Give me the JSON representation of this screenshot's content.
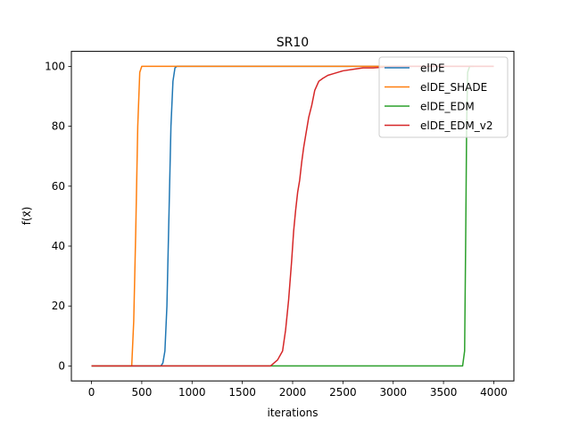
{
  "chart_data": {
    "type": "line",
    "title": "SR10",
    "xlabel": "iterations",
    "ylabel": "f(x⃗)",
    "xlim": [
      -200,
      4200
    ],
    "ylim": [
      -5,
      105
    ],
    "xticks": [
      0,
      500,
      1000,
      1500,
      2000,
      2500,
      3000,
      3500,
      4000
    ],
    "yticks": [
      0,
      20,
      40,
      60,
      80,
      100
    ],
    "grid": false,
    "legend_position": "top-right",
    "series": [
      {
        "name": "elDE",
        "color": "#1f77b4",
        "x": [
          0,
          690,
          710,
          730,
          750,
          770,
          790,
          810,
          830,
          850,
          1000,
          2000,
          3000
        ],
        "y": [
          0,
          0,
          1,
          5,
          20,
          50,
          80,
          95,
          99.5,
          100,
          100,
          100,
          100
        ]
      },
      {
        "name": "elDE_SHADE",
        "color": "#ff7f0e",
        "x": [
          0,
          400,
          420,
          440,
          460,
          480,
          500,
          520,
          1000,
          2000,
          3000,
          4000
        ],
        "y": [
          0,
          0,
          15,
          45,
          80,
          98,
          100,
          100,
          100,
          100,
          100,
          100
        ]
      },
      {
        "name": "elDE_EDM",
        "color": "#2ca02c",
        "x": [
          0,
          1000,
          2000,
          3000,
          3690,
          3710,
          3720,
          3730,
          3740,
          3760,
          3800
        ],
        "y": [
          0,
          0,
          0,
          0,
          0,
          5,
          40,
          80,
          98,
          100,
          100
        ]
      },
      {
        "name": "elDE_EDM_v2",
        "color": "#d62728",
        "x": [
          0,
          1000,
          1500,
          1700,
          1780,
          1850,
          1900,
          1930,
          1960,
          1990,
          2010,
          2030,
          2050,
          2070,
          2090,
          2110,
          2130,
          2160,
          2190,
          2220,
          2260,
          2300,
          2350,
          2400,
          2500,
          2600,
          2700,
          2800,
          2900,
          3000,
          3200,
          3500,
          4000
        ],
        "y": [
          0,
          0,
          0,
          0,
          0,
          2,
          5,
          12,
          22,
          35,
          45,
          52,
          58,
          62,
          68,
          73,
          77,
          83,
          87,
          92,
          95,
          96,
          97,
          97.5,
          98.5,
          99,
          99.5,
          99.5,
          99.7,
          100,
          100,
          100,
          100
        ]
      }
    ]
  }
}
